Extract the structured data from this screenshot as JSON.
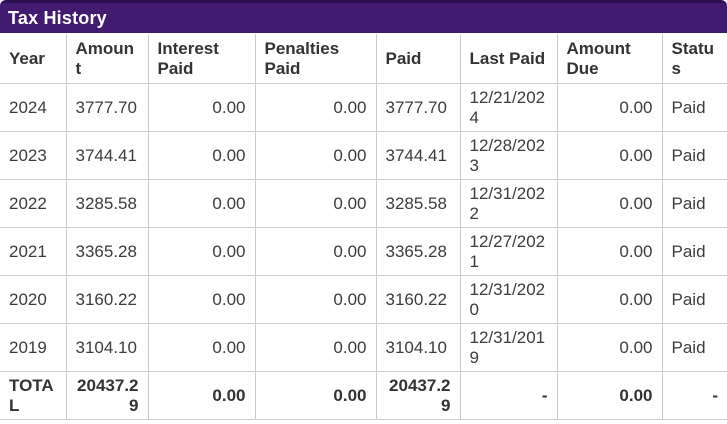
{
  "title": "Tax History",
  "colors": {
    "bar_background": "#421A70",
    "bar_top_border": "#2D0E4E",
    "table_border": "#CBCBCB",
    "body_text": "#3C3C3C",
    "header_text": "#333333",
    "title_text": "#FFFFFF"
  },
  "table": {
    "columns": [
      {
        "key": "year",
        "label": "Year",
        "align": "left"
      },
      {
        "key": "amount",
        "label": "Amount",
        "align": "left"
      },
      {
        "key": "interest-paid",
        "label": "Interest Paid",
        "align": "right"
      },
      {
        "key": "penalties-paid",
        "label": "Penalties Paid",
        "align": "right"
      },
      {
        "key": "paid",
        "label": "Paid",
        "align": "left"
      },
      {
        "key": "last-paid",
        "label": "Last Paid",
        "align": "left"
      },
      {
        "key": "amount-due",
        "label": "Amount Due",
        "align": "right"
      },
      {
        "key": "status",
        "label": "Status",
        "align": "left"
      }
    ],
    "rows": [
      [
        "2024",
        "3777.70",
        "0.00",
        "0.00",
        "3777.70",
        "12/21/2024",
        "0.00",
        "Paid"
      ],
      [
        "2023",
        "3744.41",
        "0.00",
        "0.00",
        "3744.41",
        "12/28/2023",
        "0.00",
        "Paid"
      ],
      [
        "2022",
        "3285.58",
        "0.00",
        "0.00",
        "3285.58",
        "12/31/2022",
        "0.00",
        "Paid"
      ],
      [
        "2021",
        "3365.28",
        "0.00",
        "0.00",
        "3365.28",
        "12/27/2021",
        "0.00",
        "Paid"
      ],
      [
        "2020",
        "3160.22",
        "0.00",
        "0.00",
        "3160.22",
        "12/31/2020",
        "0.00",
        "Paid"
      ],
      [
        "2019",
        "3104.10",
        "0.00",
        "0.00",
        "3104.10",
        "12/31/2019",
        "0.00",
        "Paid"
      ]
    ],
    "total": [
      "TOTAL",
      "20437.29",
      "0.00",
      "0.00",
      "20437.29",
      "-",
      "0.00",
      "-"
    ]
  }
}
